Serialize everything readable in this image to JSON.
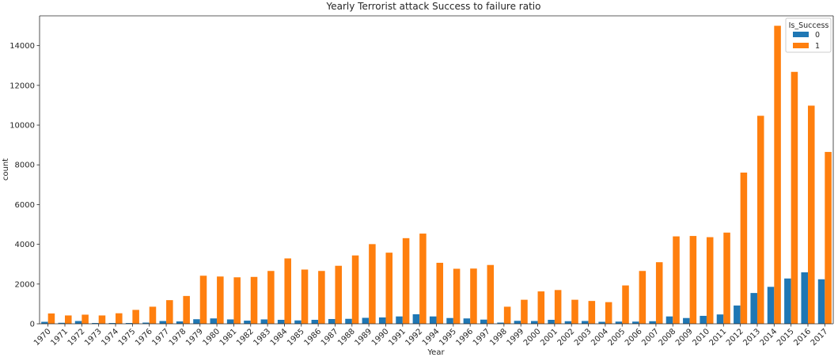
{
  "chart_data": {
    "type": "bar",
    "title": "Yearly Terrorist attack Success to failure ratio",
    "xlabel": "Year",
    "ylabel": "count",
    "ylim": [
      0,
      15500
    ],
    "yticks": [
      0,
      2000,
      4000,
      6000,
      8000,
      10000,
      12000,
      14000
    ],
    "grid": false,
    "legend": {
      "title": "Is_Success",
      "placement": "top-right"
    },
    "categories": [
      "1970",
      "1971",
      "1972",
      "1973",
      "1974",
      "1975",
      "1976",
      "1977",
      "1978",
      "1979",
      "1980",
      "1981",
      "1982",
      "1983",
      "1984",
      "1985",
      "1986",
      "1987",
      "1988",
      "1989",
      "1990",
      "1991",
      "1992",
      "1994",
      "1995",
      "1996",
      "1997",
      "1998",
      "1999",
      "2000",
      "2001",
      "2002",
      "2003",
      "2004",
      "2005",
      "2006",
      "2007",
      "2008",
      "2009",
      "2010",
      "2011",
      "2012",
      "2013",
      "2014",
      "2015",
      "2016",
      "2017"
    ],
    "series": [
      {
        "name": "0",
        "color": "#1f77b4",
        "values": [
          100,
          50,
          140,
          40,
          40,
          40,
          60,
          140,
          120,
          230,
          270,
          220,
          160,
          220,
          200,
          170,
          200,
          240,
          250,
          300,
          320,
          370,
          480,
          370,
          290,
          270,
          210,
          60,
          150,
          140,
          200,
          130,
          140,
          100,
          110,
          110,
          130,
          370,
          290,
          400,
          470,
          920,
          1550,
          1860,
          2280,
          2590,
          2240
        ]
      },
      {
        "name": "1",
        "color": "#ff7f0e",
        "values": [
          520,
          420,
          460,
          420,
          530,
          700,
          860,
          1190,
          1400,
          2420,
          2380,
          2340,
          2360,
          2660,
          3290,
          2730,
          2660,
          2920,
          3440,
          4010,
          3580,
          4310,
          4540,
          3070,
          2770,
          2780,
          2960,
          860,
          1210,
          1630,
          1700,
          1210,
          1150,
          1090,
          1930,
          2660,
          3100,
          4400,
          4420,
          4360,
          4590,
          7610,
          10470,
          15000,
          12680,
          10980,
          8650
        ]
      }
    ]
  }
}
